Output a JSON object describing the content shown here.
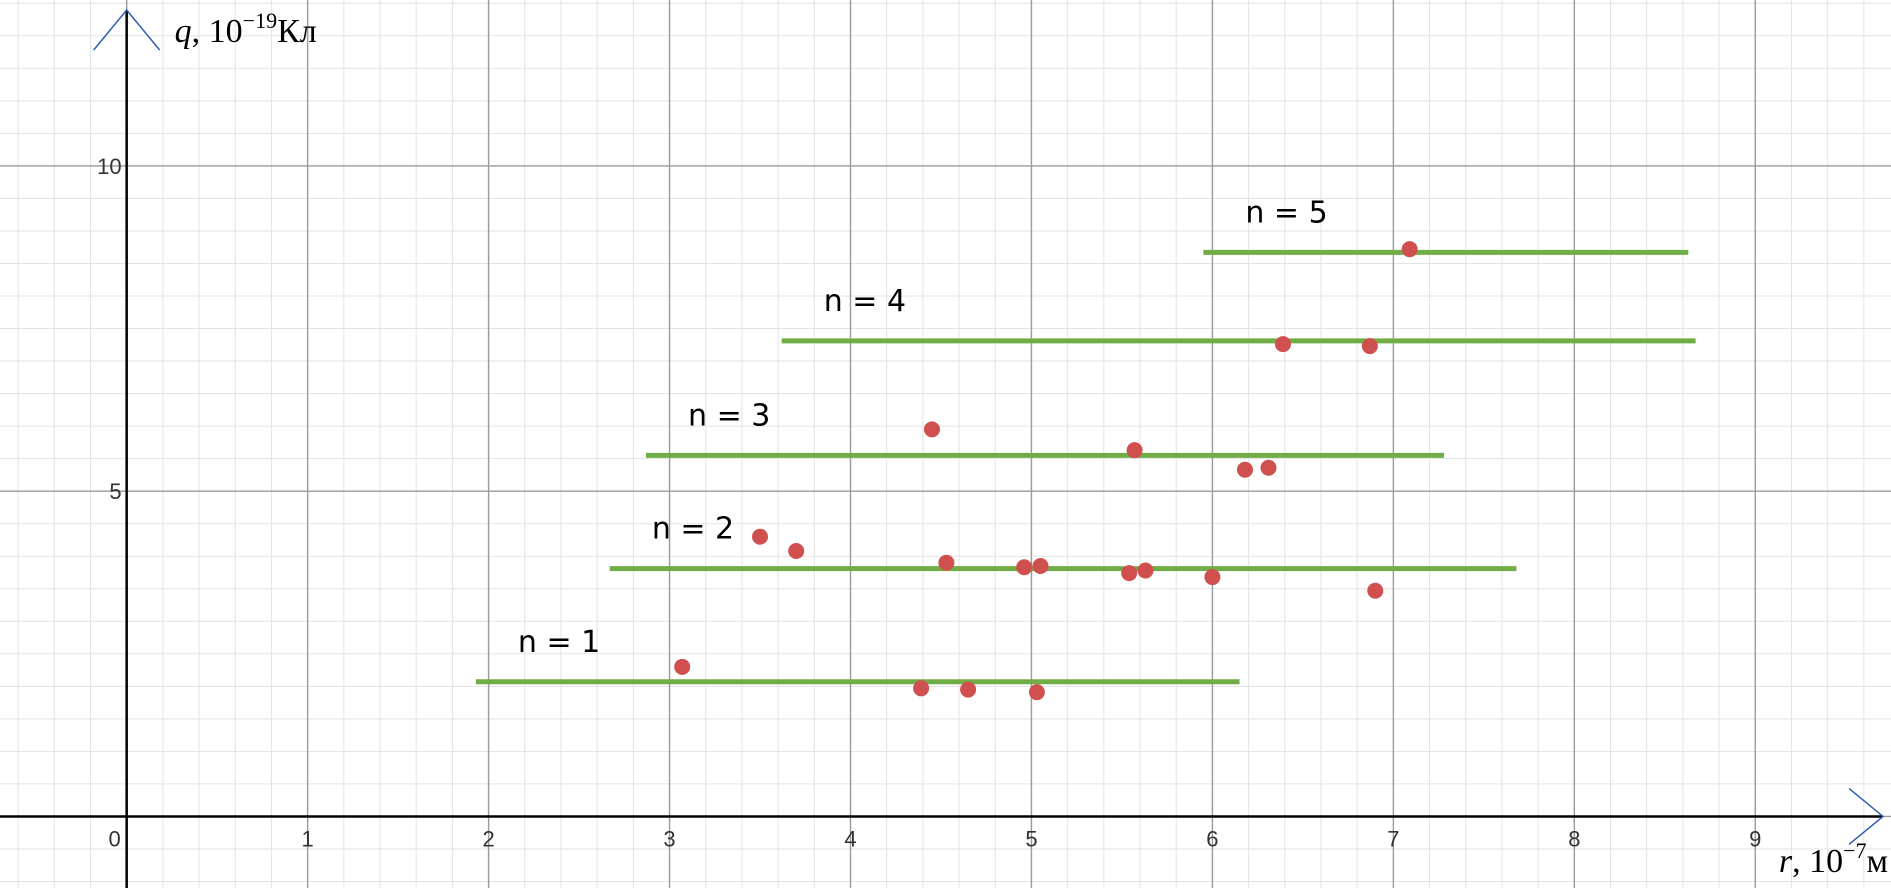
{
  "chart_data": {
    "type": "scatter",
    "title": "",
    "xlabel": {
      "var": "r",
      "rest": ", 10",
      "exp": "−7",
      "unit": "м"
    },
    "ylabel": {
      "var": "q",
      "rest": ", 10",
      "exp": "−19",
      "unit": "Кл"
    },
    "xlim": [
      -0.7,
      9.75
    ],
    "ylim": [
      -1.1,
      12.55
    ],
    "grid": true,
    "x_ticks": [
      "0",
      "1",
      "2",
      "3",
      "4",
      "5",
      "6",
      "7",
      "8",
      "9"
    ],
    "y_ticks": [
      "5",
      "10"
    ],
    "points": [
      {
        "x": 3.07,
        "y": 2.3
      },
      {
        "x": 4.39,
        "y": 1.97
      },
      {
        "x": 4.65,
        "y": 1.95
      },
      {
        "x": 5.03,
        "y": 1.91
      },
      {
        "x": 3.5,
        "y": 4.3
      },
      {
        "x": 3.7,
        "y": 4.08
      },
      {
        "x": 4.53,
        "y": 3.9
      },
      {
        "x": 4.96,
        "y": 3.83
      },
      {
        "x": 5.05,
        "y": 3.85
      },
      {
        "x": 5.54,
        "y": 3.74
      },
      {
        "x": 5.63,
        "y": 3.78
      },
      {
        "x": 6.0,
        "y": 3.68
      },
      {
        "x": 6.9,
        "y": 3.47
      },
      {
        "x": 4.45,
        "y": 5.95
      },
      {
        "x": 5.57,
        "y": 5.63
      },
      {
        "x": 6.18,
        "y": 5.33
      },
      {
        "x": 6.31,
        "y": 5.36
      },
      {
        "x": 6.39,
        "y": 7.26
      },
      {
        "x": 6.87,
        "y": 7.23
      },
      {
        "x": 7.09,
        "y": 8.72
      }
    ],
    "levels": [
      {
        "label": "n = 1",
        "y": 2.07,
        "x_start": 1.93,
        "x_end": 6.15
      },
      {
        "label": "n = 2",
        "y": 3.81,
        "x_start": 2.67,
        "x_end": 7.68
      },
      {
        "label": "n = 3",
        "y": 5.55,
        "x_start": 2.87,
        "x_end": 7.28
      },
      {
        "label": "n = 4",
        "y": 7.31,
        "x_start": 3.62,
        "x_end": 8.67
      },
      {
        "label": "n = 5",
        "y": 8.67,
        "x_start": 5.95,
        "x_end": 8.63
      }
    ],
    "colors": {
      "points": "#d05050",
      "levels": "#70ad47",
      "axes": "#000000",
      "grid_major": "#9a9a9a",
      "grid_minor": "#e3e3e3"
    }
  }
}
